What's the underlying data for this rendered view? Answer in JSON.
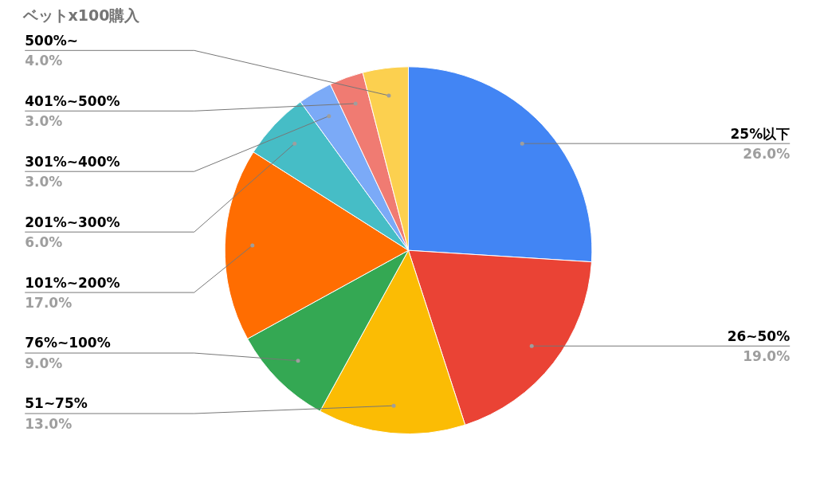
{
  "chart_data": {
    "type": "pie",
    "title": "ベットx100購入",
    "categories": [
      "25%以下",
      "26~50%",
      "51~75%",
      "76%~100%",
      "101%~200%",
      "201%~300%",
      "301%~400%",
      "401%~500%",
      "500%~"
    ],
    "values": [
      26,
      19,
      13,
      9,
      17,
      6,
      3,
      3,
      4
    ],
    "colors": [
      "#4285f4",
      "#ea4335",
      "#fbbc04",
      "#34a853",
      "#ff6d01",
      "#46bdc6",
      "#7baaf7",
      "#f07b72",
      "#fcd04f"
    ],
    "value_labels": [
      "26.0%",
      "19.0%",
      "13.0%",
      "9.0%",
      "17.0%",
      "6.0%",
      "3.0%",
      "3.0%",
      "4.0%"
    ]
  }
}
